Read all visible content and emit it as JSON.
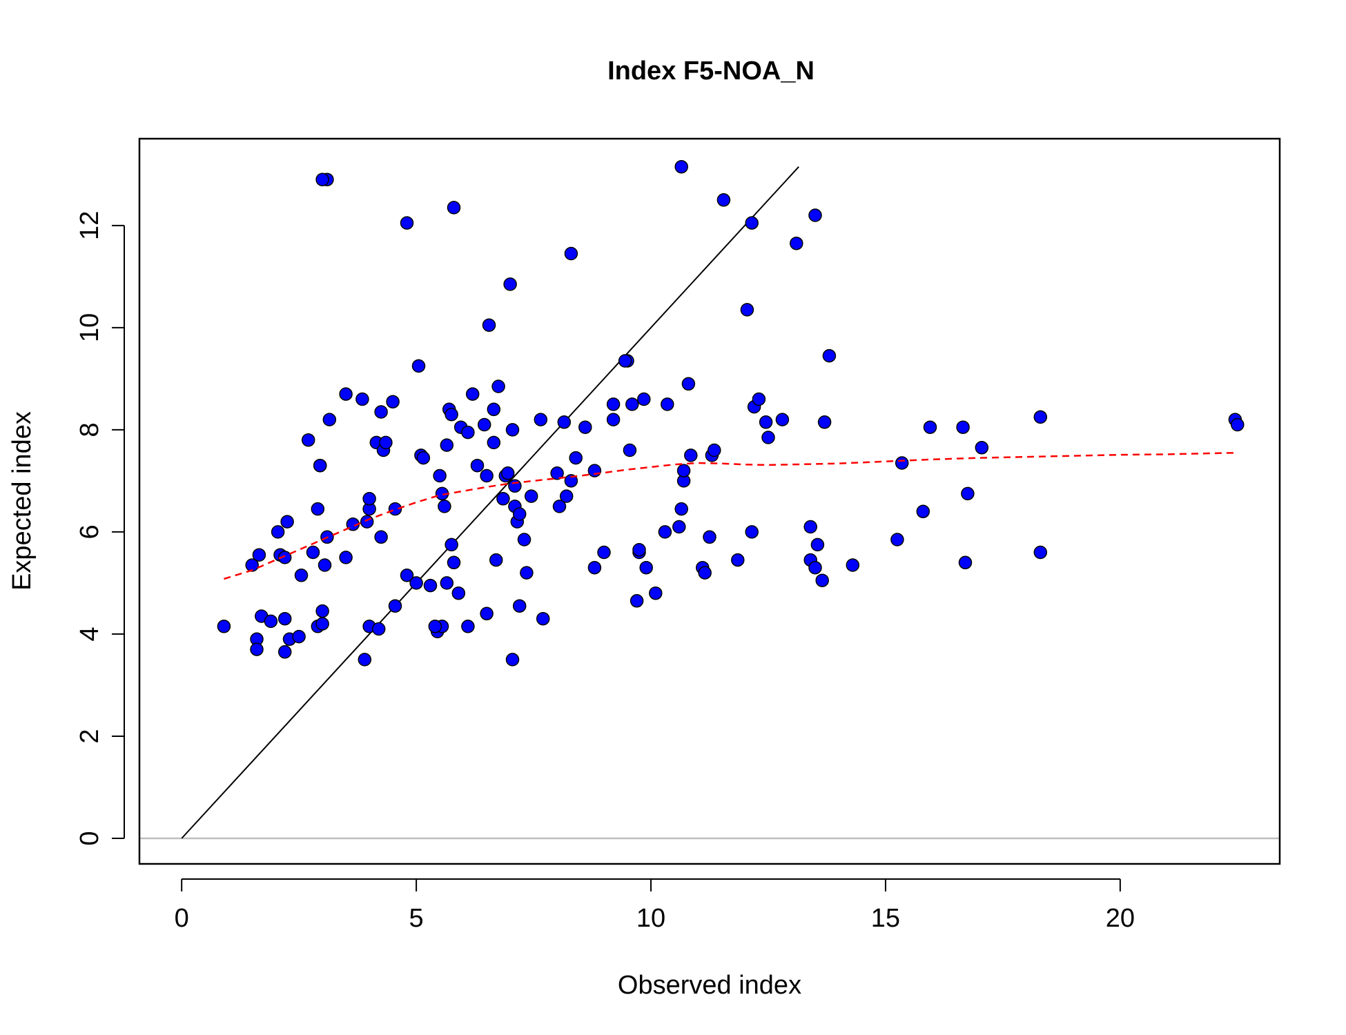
{
  "chart_data": {
    "type": "scatter",
    "title": "Index F5-NOA_N",
    "xlabel": "Observed index",
    "ylabel": "Expected index",
    "xlim": [
      -0.9,
      23.4
    ],
    "ylim": [
      -0.5,
      13.7
    ],
    "x_ticks": [
      0,
      5,
      10,
      15,
      20
    ],
    "y_ticks": [
      0,
      2,
      4,
      6,
      8,
      10,
      12
    ],
    "grid": false,
    "legend": "none",
    "colors": {
      "points": "#0000FF",
      "points_outline": "#000000",
      "smooth_line": "#FF0000",
      "identity_line": "#000000",
      "zero_line": "#BEBEBE"
    },
    "identity_line": {
      "x": [
        0,
        13.15
      ],
      "y": [
        0,
        13.15
      ]
    },
    "zero_line": {
      "y": 0
    },
    "smooth_line": {
      "x": [
        0.9,
        1.5,
        2.0,
        2.5,
        3.0,
        3.5,
        4.0,
        4.5,
        5.0,
        5.5,
        6.0,
        6.5,
        7.0,
        7.5,
        8.0,
        8.5,
        9.0,
        9.5,
        10.0,
        10.5,
        11.0,
        11.5,
        12.0,
        12.5,
        13.0,
        14.0,
        15.0,
        16.0,
        17.0,
        18.0,
        19.0,
        20.0,
        21.0,
        22.0,
        22.5
      ],
      "y": [
        5.08,
        5.25,
        5.45,
        5.65,
        5.85,
        6.05,
        6.25,
        6.42,
        6.58,
        6.72,
        6.8,
        6.88,
        6.95,
        7.0,
        7.05,
        7.1,
        7.16,
        7.22,
        7.27,
        7.32,
        7.35,
        7.34,
        7.32,
        7.31,
        7.32,
        7.34,
        7.38,
        7.42,
        7.45,
        7.47,
        7.49,
        7.51,
        7.52,
        7.54,
        7.55
      ]
    },
    "series": [
      {
        "x": [
          0.9,
          1.6,
          1.6,
          1.7,
          1.9,
          2.2,
          2.2,
          2.3,
          2.5,
          2.9,
          3.0,
          3.0,
          3.1,
          3.9,
          4.0,
          4.2,
          1.5,
          1.65,
          2.05,
          2.1,
          2.2,
          2.25,
          2.55,
          2.8,
          2.9,
          2.95,
          3.05,
          3.1,
          3.5,
          3.65,
          3.95,
          4.0,
          4.0,
          4.25,
          4.55,
          2.7,
          2.95,
          3.15,
          3.5,
          3.85,
          4.15,
          4.3,
          4.35,
          4.25,
          4.5,
          3.0,
          4.8,
          5.05,
          5.1,
          5.15,
          5.5,
          5.55,
          5.6,
          5.65,
          5.7,
          5.75,
          5.95,
          6.1,
          6.2,
          6.3,
          6.45,
          6.5,
          6.55,
          6.65,
          6.65,
          6.7,
          6.75,
          6.85,
          6.9,
          6.95,
          7.0,
          7.05,
          7.1,
          7.1,
          7.15,
          7.2,
          7.3,
          7.35,
          7.45,
          7.65,
          7.7,
          8.0,
          8.05,
          8.15,
          8.2,
          8.3,
          8.4,
          8.6,
          8.8,
          8.8,
          9.0,
          9.2,
          9.2,
          9.5,
          9.55,
          9.6,
          9.7,
          9.75,
          9.75,
          9.85,
          9.9,
          10.1,
          10.3,
          10.35,
          10.6,
          10.65,
          10.7,
          10.7,
          10.8,
          10.85,
          11.1,
          11.15,
          11.25,
          11.3,
          11.35,
          11.85,
          12.05,
          12.15,
          12.2,
          12.3,
          12.45,
          12.5,
          12.8,
          13.1,
          13.4,
          13.4,
          13.5,
          13.55,
          13.65,
          13.7,
          13.8,
          14.3,
          15.25,
          15.35,
          15.8,
          15.95,
          16.65,
          16.7,
          16.75,
          17.05,
          18.3,
          18.3,
          22.45,
          22.5,
          4.8,
          5.0,
          5.3,
          5.45,
          5.55,
          5.65,
          5.8,
          5.9,
          6.1,
          5.75,
          6.5,
          7.05,
          7.2,
          8.3,
          10.65,
          11.55,
          13.5,
          12.15,
          9.45,
          5.8,
          4.55,
          5.4
        ],
        "y": [
          4.15,
          3.9,
          3.7,
          4.35,
          4.25,
          4.3,
          3.65,
          3.9,
          3.95,
          4.15,
          4.2,
          4.45,
          12.9,
          3.5,
          4.15,
          4.1,
          5.35,
          5.55,
          6.0,
          5.55,
          5.5,
          6.2,
          5.15,
          5.6,
          6.45,
          7.3,
          5.35,
          5.9,
          5.5,
          6.15,
          6.2,
          6.45,
          6.65,
          5.9,
          6.45,
          7.8,
          7.3,
          8.2,
          8.7,
          8.6,
          7.75,
          7.6,
          7.75,
          8.35,
          8.55,
          12.9,
          12.05,
          9.25,
          7.5,
          7.45,
          7.1,
          6.75,
          6.5,
          7.7,
          8.4,
          8.3,
          8.05,
          7.95,
          8.7,
          7.3,
          8.1,
          7.1,
          10.05,
          7.75,
          8.4,
          5.45,
          8.85,
          6.65,
          7.1,
          7.15,
          10.85,
          8.0,
          6.5,
          6.9,
          6.2,
          6.35,
          5.85,
          5.2,
          6.7,
          8.2,
          4.3,
          7.15,
          6.5,
          8.15,
          6.7,
          7.0,
          7.45,
          8.05,
          7.2,
          5.3,
          5.6,
          8.5,
          8.2,
          9.35,
          7.6,
          8.5,
          4.65,
          5.6,
          5.65,
          8.6,
          5.3,
          4.8,
          6.0,
          8.5,
          6.1,
          6.45,
          7.0,
          7.2,
          8.9,
          7.5,
          5.3,
          5.2,
          5.9,
          7.5,
          7.6,
          5.45,
          10.35,
          6.0,
          8.45,
          8.6,
          8.15,
          7.85,
          8.2,
          11.65,
          5.45,
          6.1,
          5.3,
          5.75,
          5.05,
          8.15,
          9.45,
          5.35,
          5.85,
          7.35,
          6.4,
          8.05,
          8.05,
          5.4,
          6.75,
          7.65,
          8.25,
          5.6,
          8.2,
          8.1,
          5.15,
          5.0,
          4.95,
          4.05,
          4.15,
          5.0,
          5.4,
          4.8,
          4.15,
          5.75,
          4.4,
          3.5,
          4.55,
          11.45,
          13.15,
          12.5,
          12.2,
          12.05,
          9.35,
          12.35,
          4.55,
          4.15
        ]
      }
    ]
  }
}
